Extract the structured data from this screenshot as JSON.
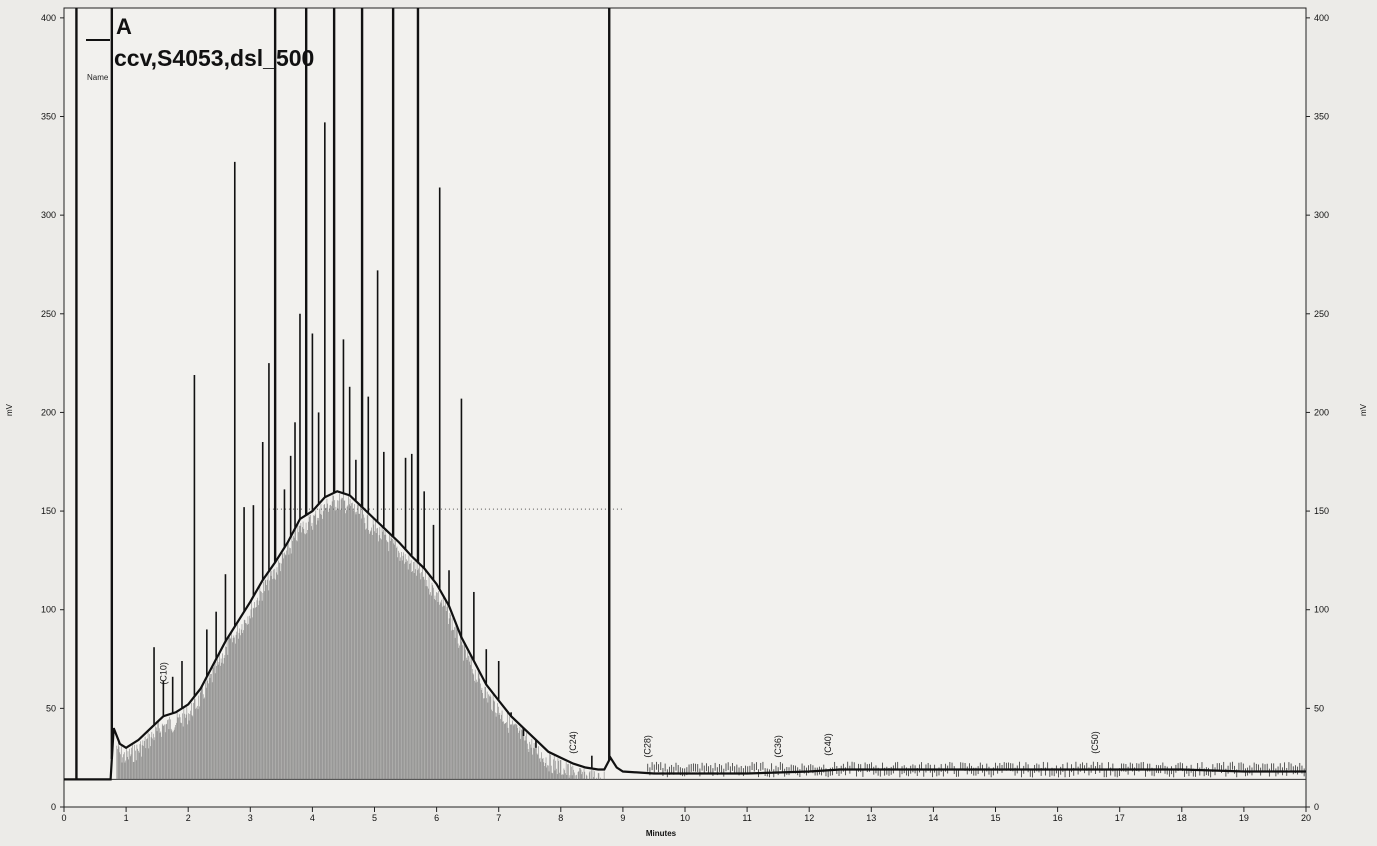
{
  "chart_data": {
    "type": "line",
    "legend": {
      "series_label": "A",
      "sample_name": "ccv,S4053,dsl_500",
      "column_header": "Name"
    },
    "xlabel": "Minutes",
    "ylabel_left": "mV",
    "ylabel_right": "mV",
    "xlim": [
      0,
      20
    ],
    "ylim": [
      0,
      405
    ],
    "x_ticks": [
      0,
      1,
      2,
      3,
      4,
      5,
      6,
      7,
      8,
      9,
      10,
      11,
      12,
      13,
      14,
      15,
      16,
      17,
      18,
      19,
      20
    ],
    "y_ticks": [
      0,
      50,
      100,
      150,
      200,
      250,
      300,
      350,
      400
    ],
    "grid": false,
    "reference_lines": [
      {
        "y": 151,
        "x_from": 3.3,
        "x_to": 9.0,
        "style": "dotted"
      }
    ],
    "peak_labels": [
      {
        "text": "(C10)",
        "x": 1.6,
        "y": 62
      },
      {
        "text": "(C24)",
        "x": 8.2,
        "y": 27
      },
      {
        "text": "(C28)",
        "x": 9.4,
        "y": 25
      },
      {
        "text": "(C36)",
        "x": 11.5,
        "y": 25
      },
      {
        "text": "(C40)",
        "x": 12.3,
        "y": 26
      },
      {
        "text": "(C50)",
        "x": 16.6,
        "y": 27
      }
    ],
    "baseline_trace": [
      [
        0.0,
        14
      ],
      [
        0.2,
        14
      ],
      [
        0.75,
        14
      ],
      [
        0.8,
        40
      ],
      [
        0.9,
        32
      ],
      [
        1.0,
        30
      ],
      [
        1.2,
        34
      ],
      [
        1.4,
        40
      ],
      [
        1.6,
        46
      ],
      [
        1.8,
        48
      ],
      [
        2.0,
        52
      ],
      [
        2.2,
        60
      ],
      [
        2.4,
        72
      ],
      [
        2.6,
        84
      ],
      [
        2.8,
        94
      ],
      [
        3.0,
        104
      ],
      [
        3.2,
        115
      ],
      [
        3.4,
        124
      ],
      [
        3.6,
        134
      ],
      [
        3.8,
        146
      ],
      [
        4.0,
        150
      ],
      [
        4.2,
        157
      ],
      [
        4.4,
        160
      ],
      [
        4.6,
        158
      ],
      [
        4.8,
        152
      ],
      [
        5.0,
        146
      ],
      [
        5.2,
        140
      ],
      [
        5.4,
        134
      ],
      [
        5.6,
        127
      ],
      [
        5.8,
        121
      ],
      [
        6.0,
        113
      ],
      [
        6.2,
        102
      ],
      [
        6.4,
        86
      ],
      [
        6.6,
        74
      ],
      [
        6.8,
        62
      ],
      [
        7.0,
        54
      ],
      [
        7.2,
        46
      ],
      [
        7.4,
        40
      ],
      [
        7.6,
        34
      ],
      [
        7.8,
        28
      ],
      [
        8.0,
        25
      ],
      [
        8.2,
        22
      ],
      [
        8.4,
        20
      ],
      [
        8.6,
        19
      ],
      [
        8.7,
        19
      ],
      [
        8.8,
        25
      ],
      [
        8.9,
        20
      ],
      [
        9.0,
        18
      ],
      [
        9.5,
        17
      ],
      [
        10.0,
        17
      ],
      [
        11.0,
        17
      ],
      [
        12.0,
        18
      ],
      [
        12.5,
        19
      ],
      [
        13.0,
        19
      ],
      [
        14.0,
        19
      ],
      [
        15.0,
        19
      ],
      [
        16.0,
        19
      ],
      [
        17.0,
        19
      ],
      [
        18.0,
        19
      ],
      [
        19.0,
        18
      ],
      [
        20.0,
        18
      ]
    ],
    "peaks": [
      [
        0.2,
        405
      ],
      [
        0.77,
        405
      ],
      [
        1.45,
        81
      ],
      [
        1.6,
        64
      ],
      [
        1.75,
        66
      ],
      [
        1.9,
        74
      ],
      [
        2.1,
        219
      ],
      [
        2.3,
        90
      ],
      [
        2.45,
        99
      ],
      [
        2.6,
        118
      ],
      [
        2.75,
        327
      ],
      [
        2.9,
        152
      ],
      [
        3.05,
        153
      ],
      [
        3.2,
        185
      ],
      [
        3.3,
        225
      ],
      [
        3.4,
        405
      ],
      [
        3.55,
        161
      ],
      [
        3.65,
        178
      ],
      [
        3.72,
        195
      ],
      [
        3.8,
        250
      ],
      [
        3.9,
        405
      ],
      [
        4.0,
        240
      ],
      [
        4.1,
        200
      ],
      [
        4.2,
        347
      ],
      [
        4.35,
        405
      ],
      [
        4.5,
        237
      ],
      [
        4.6,
        213
      ],
      [
        4.7,
        176
      ],
      [
        4.8,
        405
      ],
      [
        4.9,
        208
      ],
      [
        5.05,
        272
      ],
      [
        5.15,
        180
      ],
      [
        5.3,
        405
      ],
      [
        5.5,
        177
      ],
      [
        5.6,
        179
      ],
      [
        5.7,
        405
      ],
      [
        5.8,
        160
      ],
      [
        5.95,
        143
      ],
      [
        6.05,
        314
      ],
      [
        6.2,
        120
      ],
      [
        6.4,
        207
      ],
      [
        6.6,
        109
      ],
      [
        6.8,
        80
      ],
      [
        7.0,
        74
      ],
      [
        7.2,
        48
      ],
      [
        7.4,
        36
      ],
      [
        7.6,
        30
      ],
      [
        8.5,
        26
      ],
      [
        8.78,
        405
      ]
    ],
    "noise_region": {
      "x_from": 9.4,
      "x_to": 20.0,
      "y": 19
    }
  }
}
